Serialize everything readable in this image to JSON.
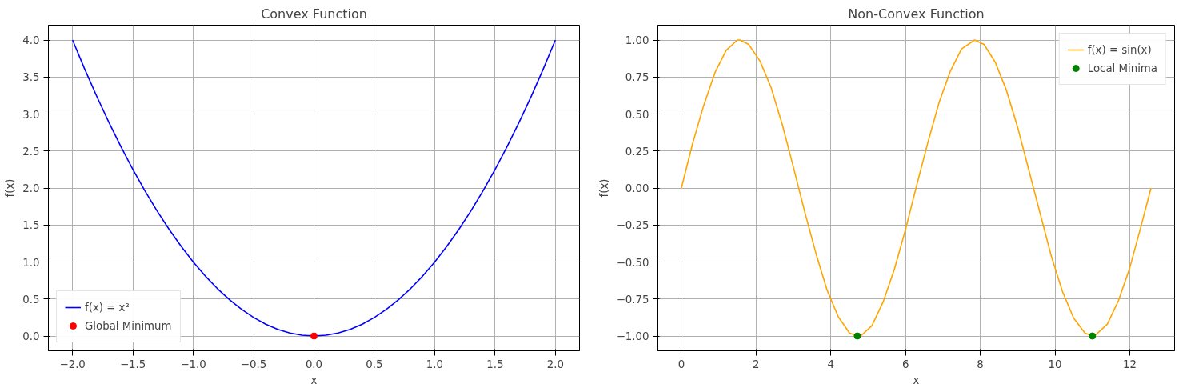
{
  "chart_data": [
    {
      "type": "line",
      "title": "Convex Function",
      "xlabel": "x",
      "ylabel": "f(x)",
      "xlim": [
        -2.2,
        2.2
      ],
      "ylim": [
        -0.2,
        4.2
      ],
      "xticks": [
        {
          "value": -2.0,
          "label": "−2.0"
        },
        {
          "value": -1.5,
          "label": "−1.5"
        },
        {
          "value": -1.0,
          "label": "−1.0"
        },
        {
          "value": -0.5,
          "label": "−0.5"
        },
        {
          "value": 0.0,
          "label": "0.0"
        },
        {
          "value": 0.5,
          "label": "0.5"
        },
        {
          "value": 1.0,
          "label": "1.0"
        },
        {
          "value": 1.5,
          "label": "1.5"
        },
        {
          "value": 2.0,
          "label": "2.0"
        }
      ],
      "yticks": [
        {
          "value": 0.0,
          "label": "0.0"
        },
        {
          "value": 0.5,
          "label": "0.5"
        },
        {
          "value": 1.0,
          "label": "1.0"
        },
        {
          "value": 1.5,
          "label": "1.5"
        },
        {
          "value": 2.0,
          "label": "2.0"
        },
        {
          "value": 2.5,
          "label": "2.5"
        },
        {
          "value": 3.0,
          "label": "3.0"
        },
        {
          "value": 3.5,
          "label": "3.5"
        },
        {
          "value": 4.0,
          "label": "4.0"
        }
      ],
      "grid": true,
      "legend": "bottom left",
      "series": [
        {
          "name": "f(x) = x²",
          "color": "#0000ff",
          "line_style": "solid",
          "x": [
            -2.0,
            -1.9,
            -1.8,
            -1.7,
            -1.6,
            -1.5,
            -1.4,
            -1.3,
            -1.2,
            -1.1,
            -1.0,
            -0.9,
            -0.8,
            -0.7,
            -0.6,
            -0.5,
            -0.4,
            -0.3,
            -0.2,
            -0.1,
            0.0,
            0.1,
            0.2,
            0.3,
            0.4,
            0.5,
            0.6,
            0.7,
            0.8,
            0.9,
            1.0,
            1.1,
            1.2,
            1.3,
            1.4,
            1.5,
            1.6,
            1.7,
            1.8,
            1.9,
            2.0
          ],
          "values": [
            4.0,
            3.61,
            3.24,
            2.89,
            2.56,
            2.25,
            1.96,
            1.69,
            1.44,
            1.21,
            1.0,
            0.81,
            0.64,
            0.49,
            0.36,
            0.25,
            0.16,
            0.09,
            0.04,
            0.01,
            0.0,
            0.01,
            0.04,
            0.09,
            0.16,
            0.25,
            0.36,
            0.49,
            0.64,
            0.81,
            1.0,
            1.21,
            1.44,
            1.69,
            1.96,
            2.25,
            2.56,
            2.89,
            3.24,
            3.61,
            4.0
          ]
        },
        {
          "name": "Global Minimum",
          "type": "scatter",
          "color": "#ff0000",
          "marker": "circle",
          "x": [
            0.0
          ],
          "values": [
            0.0
          ]
        }
      ]
    },
    {
      "type": "line",
      "title": "Non-Convex Function",
      "xlabel": "x",
      "ylabel": "f(x)",
      "xlim": [
        -0.63,
        13.2
      ],
      "ylim": [
        -1.1,
        1.1
      ],
      "xticks": [
        0,
        2,
        4,
        6,
        8,
        10,
        12
      ],
      "yticks": [
        {
          "value": -1.0,
          "label": "−1.00"
        },
        {
          "value": -0.75,
          "label": "−0.75"
        },
        {
          "value": -0.5,
          "label": "−0.50"
        },
        {
          "value": -0.25,
          "label": "−0.25"
        },
        {
          "value": 0.0,
          "label": "0.00"
        },
        {
          "value": 0.25,
          "label": "0.25"
        },
        {
          "value": 0.5,
          "label": "0.50"
        },
        {
          "value": 0.75,
          "label": "0.75"
        },
        {
          "value": 1.0,
          "label": "1.00"
        }
      ],
      "grid": true,
      "legend": "top right",
      "series": [
        {
          "name": "f(x) = sin(x)",
          "color": "#ffa500",
          "line_style": "solid",
          "x": [
            0.0,
            0.3,
            0.6,
            0.9,
            1.2,
            1.5,
            1.57,
            1.8,
            2.1,
            2.4,
            2.7,
            3.0,
            3.3,
            3.6,
            3.9,
            4.2,
            4.5,
            4.71,
            4.8,
            5.1,
            5.4,
            5.7,
            6.0,
            6.3,
            6.6,
            6.9,
            7.2,
            7.5,
            7.85,
            8.1,
            8.4,
            8.7,
            9.0,
            9.3,
            9.6,
            9.9,
            10.2,
            10.5,
            10.8,
            11.0,
            11.1,
            11.4,
            11.7,
            12.0,
            12.3,
            12.57
          ],
          "values": [
            0.0,
            0.3,
            0.56,
            0.78,
            0.93,
            1.0,
            1.0,
            0.97,
            0.86,
            0.68,
            0.43,
            0.14,
            -0.16,
            -0.44,
            -0.69,
            -0.87,
            -0.98,
            -1.0,
            -1.0,
            -0.93,
            -0.77,
            -0.55,
            -0.28,
            0.02,
            0.31,
            0.58,
            0.79,
            0.94,
            1.0,
            0.97,
            0.85,
            0.66,
            0.41,
            0.12,
            -0.17,
            -0.46,
            -0.7,
            -0.88,
            -0.98,
            -1.0,
            -0.99,
            -0.92,
            -0.76,
            -0.54,
            -0.26,
            0.0
          ]
        },
        {
          "name": "Local Minima",
          "type": "scatter",
          "color": "#008000",
          "marker": "circle",
          "x": [
            4.71,
            11.0
          ],
          "values": [
            -1.0,
            -1.0
          ]
        }
      ]
    }
  ]
}
